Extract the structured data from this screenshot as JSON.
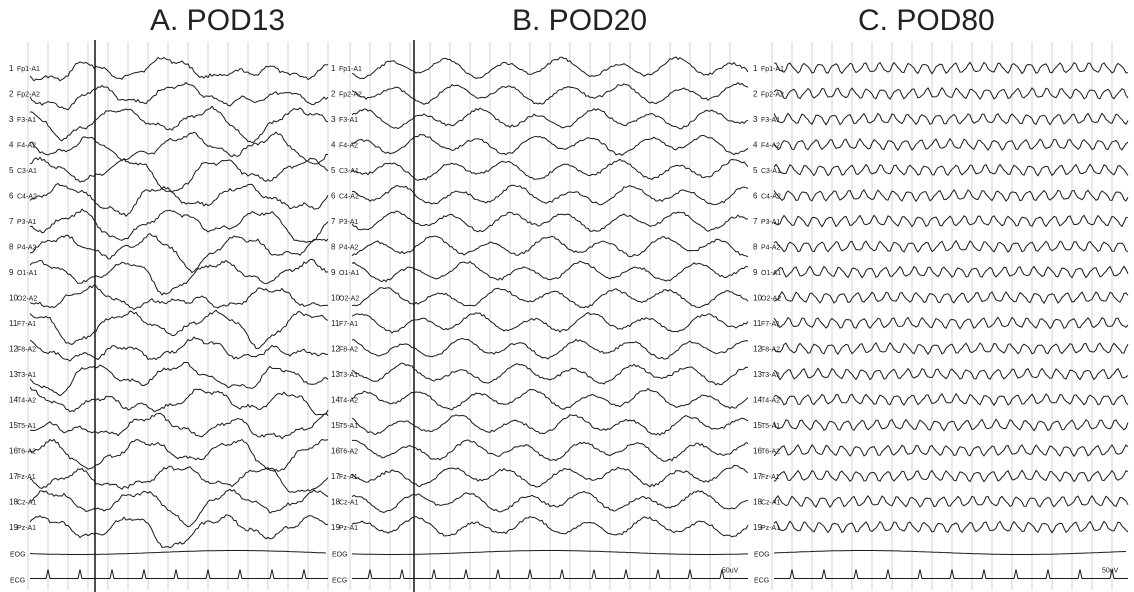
{
  "panels": [
    {
      "title": "A. POD13",
      "pattern": "high-amplitude sharp waves",
      "channel_labels": [
        "Fp1-A1",
        "Fp2-A2",
        "F3-A1",
        "F4-A2",
        "C3-A1",
        "C4-A2",
        "P3-A1",
        "P4-A2",
        "O1-A1",
        "O2-A2",
        "F7-A1",
        "F8-A2",
        "T3-A1",
        "T4-A2",
        "T5-A1",
        "T6-A2",
        "Fz-A1",
        "Cz-A1",
        "Pz-A1",
        "EOG",
        "ECG"
      ]
    },
    {
      "title": "B. POD20",
      "pattern": "mixed slow waves",
      "channel_labels": [
        "Fp1-A1",
        "Fp2-A2",
        "F3-A1",
        "F4-A2",
        "C3-A1",
        "C4-A2",
        "P3-A1",
        "P4-A2",
        "O1-A1",
        "O2-A2",
        "F7-A1",
        "F8-A2",
        "T3-A1",
        "T4-A2",
        "T5-A1",
        "T6-A2",
        "Fz-A1",
        "Cz-A1",
        "Pz-A1",
        "EOG",
        "ECG"
      ]
    },
    {
      "title": "C. POD80",
      "pattern": "regular fast activity",
      "channel_labels": [
        "Fp1-A1",
        "Fp2-A2",
        "F3-A1",
        "F4-A2",
        "C3-A1",
        "C4-A2",
        "P3-A1",
        "P4-A2",
        "O1-A1",
        "O2-A2",
        "F7-A1",
        "F8-A2",
        "T3-A1",
        "T4-A2",
        "T5-A1",
        "T6-A2",
        "Fz-A1",
        "Cz-A1",
        "Pz-A1",
        "EOG",
        "ECG"
      ]
    }
  ],
  "scale_label": "50uV",
  "colors": {
    "trace": "#1a1a1a",
    "grid": "#c8c8c8",
    "marker": "#222222"
  }
}
